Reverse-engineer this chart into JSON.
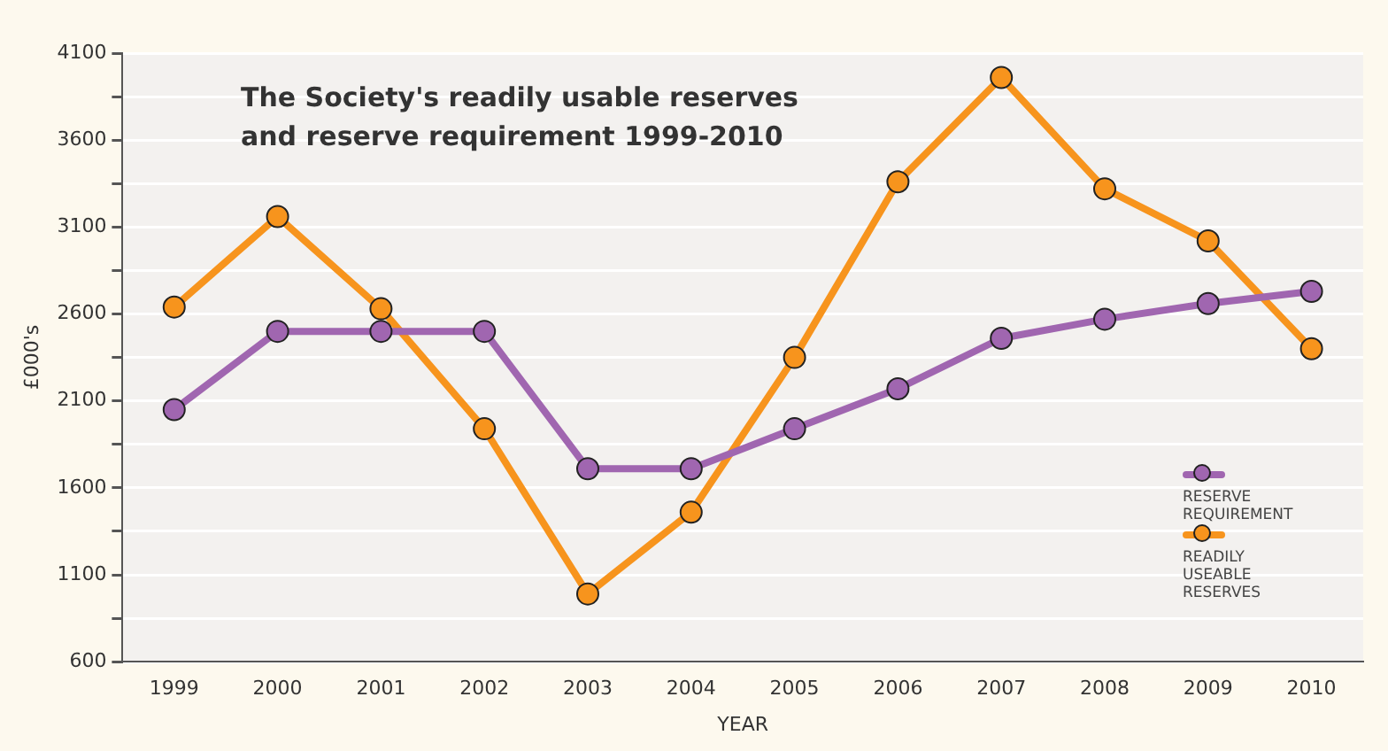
{
  "chart_data": {
    "type": "line",
    "title": "The Society's readily usable reserves and reserve requirement 1999-2010",
    "xlabel": "YEAR",
    "ylabel": "£000's",
    "categories": [
      "1999",
      "2000",
      "2001",
      "2002",
      "2003",
      "2004",
      "2005",
      "2006",
      "2007",
      "2008",
      "2009",
      "2010"
    ],
    "series": [
      {
        "name": "RESERVE REQUIREMENT",
        "color": "#a066b0",
        "values": [
          2050,
          2500,
          2500,
          2500,
          1710,
          1710,
          1940,
          2170,
          2460,
          2570,
          2660,
          2730
        ]
      },
      {
        "name": "READILY USEABLE RESERVES",
        "color": "#f7941d",
        "values": [
          2640,
          3160,
          2630,
          1940,
          990,
          1460,
          2350,
          3360,
          3960,
          3320,
          3020,
          2400
        ]
      }
    ],
    "ylim": [
      600,
      4100
    ],
    "yticks": [
      600,
      {
        "value": 850,
        "label": null
      },
      1100,
      {
        "value": 1350,
        "label": null
      },
      1600,
      {
        "value": 1850,
        "label": null
      },
      2100,
      {
        "value": 2350,
        "label": null
      },
      2600,
      {
        "value": 2850,
        "label": null
      },
      3100,
      {
        "value": 3350,
        "label": null
      },
      3600,
      {
        "value": 3850,
        "label": null
      },
      4100
    ],
    "grid": "y",
    "legend": "bottom right",
    "marker": "circle",
    "line_style": "solid"
  }
}
